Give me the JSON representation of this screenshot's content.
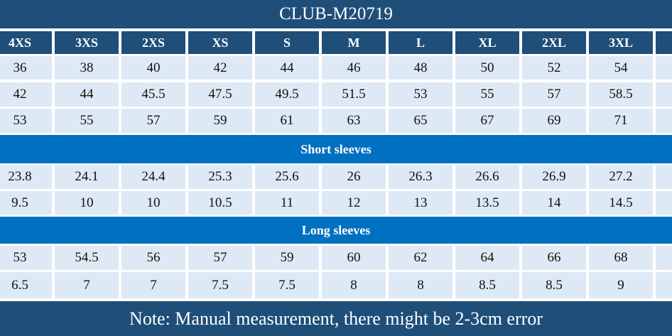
{
  "header": {
    "title": "CLUB-M20719"
  },
  "table": {
    "sizes": [
      "4XS",
      "3XS",
      "2XS",
      "XS",
      "S",
      "M",
      "L",
      "XL",
      "2XL",
      "3XL"
    ],
    "rows": [
      [
        36,
        38,
        40,
        42,
        44,
        46,
        48,
        50,
        52,
        54
      ],
      [
        42,
        44,
        45.5,
        47.5,
        49.5,
        51.5,
        53,
        55,
        57,
        58.5
      ],
      [
        53,
        55,
        57,
        59,
        61,
        63,
        65,
        67,
        69,
        71
      ]
    ]
  },
  "short_sleeves": {
    "title": "Short sleeves",
    "rows": [
      [
        23.8,
        24.1,
        24.4,
        25.3,
        25.6,
        26,
        26.3,
        26.6,
        26.9,
        27.2
      ],
      [
        9.5,
        10,
        10,
        10.5,
        11,
        12,
        13,
        13.5,
        14,
        14.5
      ]
    ]
  },
  "long_sleeves": {
    "title": "Long sleeves",
    "rows": [
      [
        53,
        54.5,
        56,
        57,
        59,
        60,
        62,
        64,
        66,
        68
      ],
      [
        6.5,
        7,
        7,
        7.5,
        7.5,
        8,
        8,
        8.5,
        8.5,
        9
      ]
    ]
  },
  "footer": {
    "note": "Note: Manual measurement, there might be 2-3cm error"
  }
}
